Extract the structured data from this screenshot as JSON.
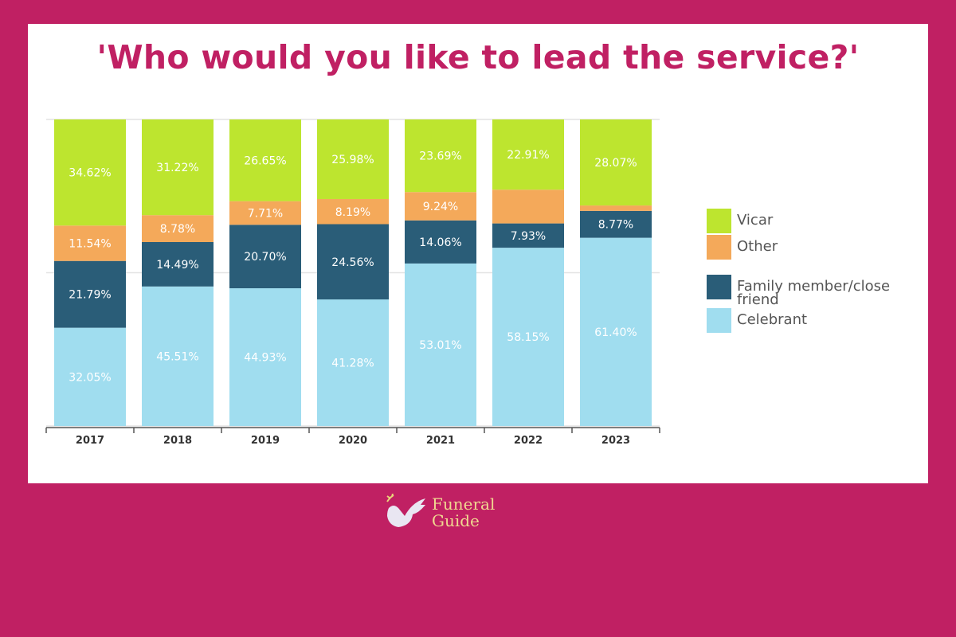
{
  "chart_data": {
    "type": "bar",
    "stacked": true,
    "title": "'Who would you like to lead the service?'",
    "categories": [
      "2017",
      "2018",
      "2019",
      "2020",
      "2021",
      "2022",
      "2023"
    ],
    "ylim": [
      0,
      100
    ],
    "grid": true,
    "legend_position": "right",
    "series": [
      {
        "name": "Celebrant",
        "color": "#a0ddef",
        "values": [
          32.05,
          45.51,
          44.93,
          41.28,
          53.01,
          58.15,
          61.4
        ],
        "labels": [
          "32.05%",
          "45.51%",
          "44.93%",
          "41.28%",
          "53.01%",
          "58.15%",
          "61.40%"
        ]
      },
      {
        "name": "Family member/close friend",
        "color": "#2a5d78",
        "values": [
          21.79,
          14.49,
          20.7,
          24.56,
          14.06,
          7.93,
          8.77
        ],
        "labels": [
          "21.79%",
          "14.49%",
          "20.70%",
          "24.56%",
          "14.06%",
          "7.93%",
          "8.77%"
        ]
      },
      {
        "name": "Other",
        "color": "#f4a95a",
        "values": [
          11.54,
          8.78,
          7.71,
          8.19,
          9.24,
          11.01,
          1.76
        ],
        "labels": [
          "11.54%",
          "8.78%",
          "7.71%",
          "8.19%",
          "9.24%",
          null,
          null
        ]
      },
      {
        "name": "Vicar",
        "color": "#bde52f",
        "values": [
          34.62,
          31.22,
          26.65,
          25.98,
          23.69,
          22.91,
          28.07
        ],
        "labels": [
          "34.62%",
          "31.22%",
          "26.65%",
          "25.98%",
          "23.69%",
          "22.91%",
          "28.07%"
        ]
      }
    ],
    "legend_order": [
      "Vicar",
      "Other",
      "Family member/close friend",
      "Celebrant"
    ]
  },
  "logo": {
    "line1": "Funeral",
    "line2": "Guide"
  },
  "colors": {
    "background": "#c02063",
    "title": "#c02063"
  }
}
